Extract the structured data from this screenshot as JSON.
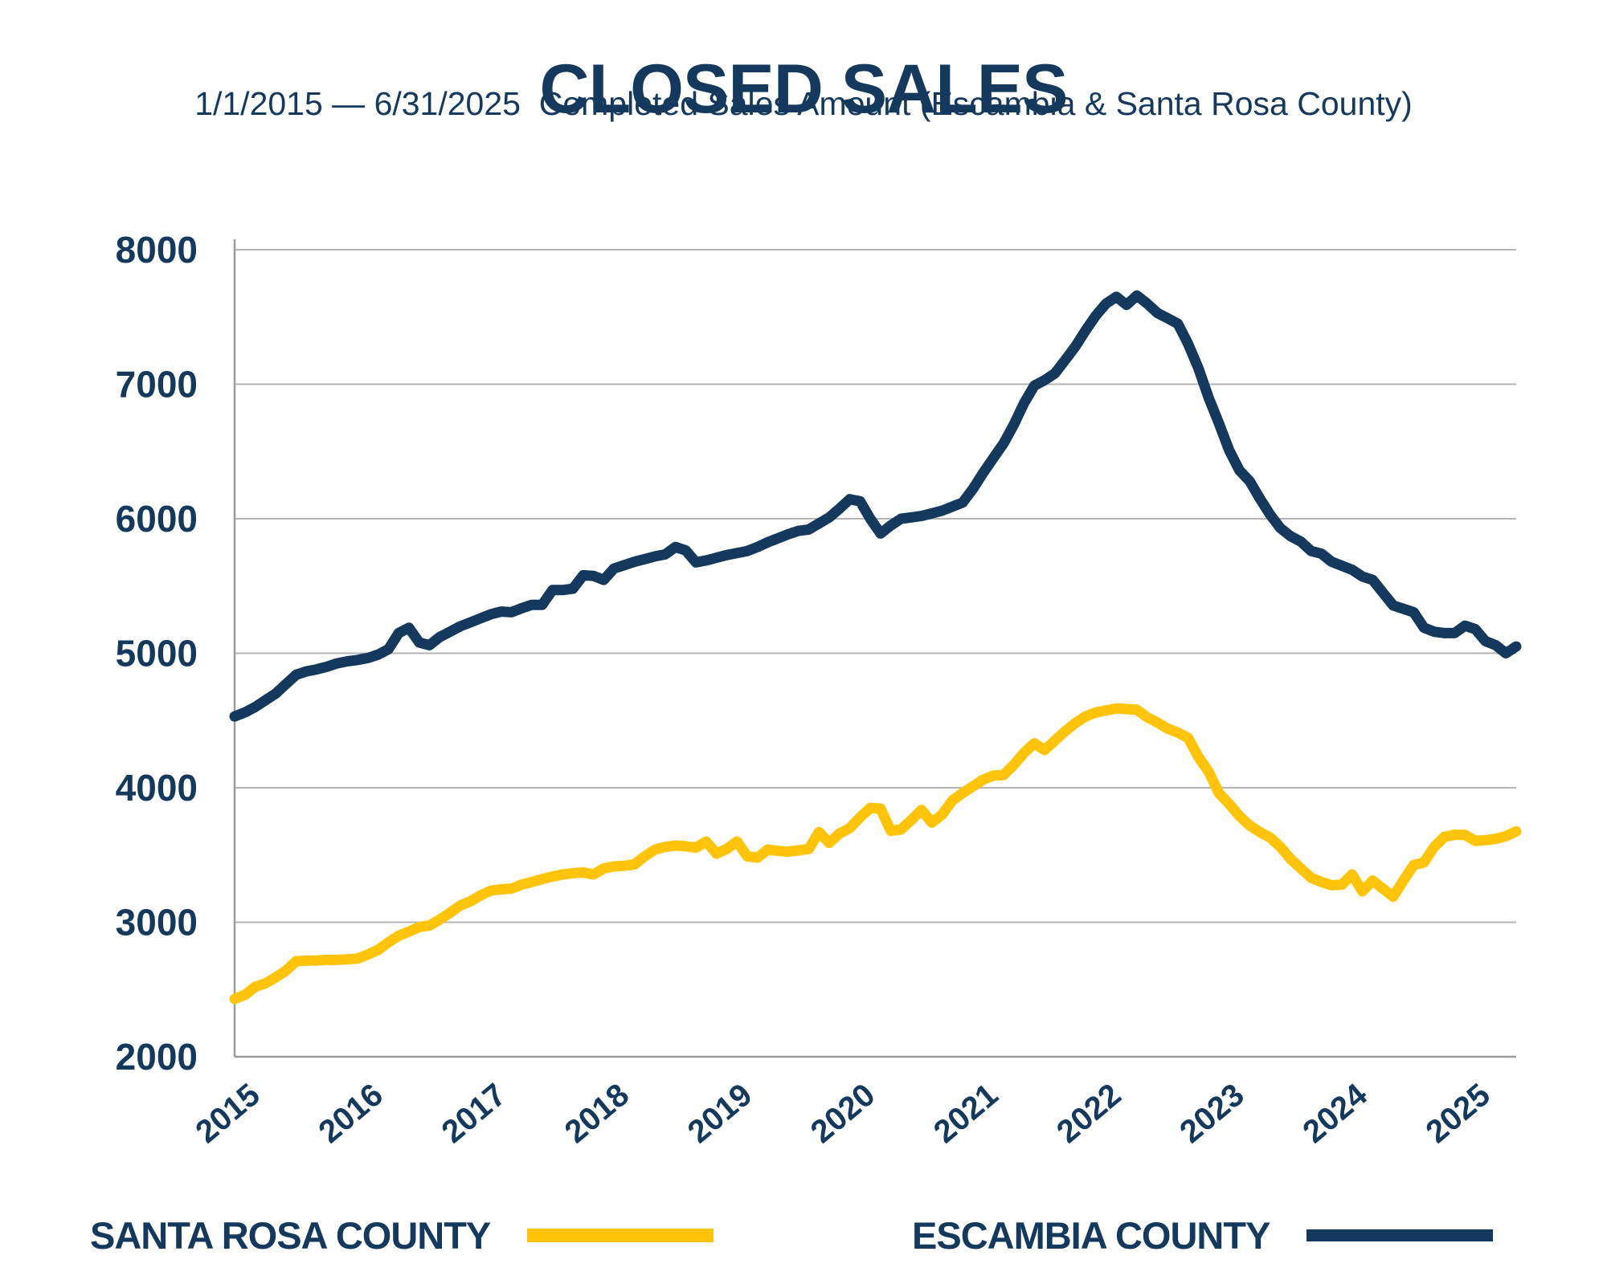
{
  "title": "CLOSED SALES",
  "subtitle": "1/1/2015 — 6/31/2025  Completed Sales Amount (Escambia & Santa Rosa County)",
  "colors": {
    "navy": "#14395C",
    "gold": "#FFC40A",
    "gridline": "#B4B4B4",
    "axis": "#9B9B9B",
    "background": "#FFFFFF"
  },
  "chart_data": {
    "type": "line",
    "title": "CLOSED SALES",
    "date_range": "1/1/2015 — 6/31/2025",
    "x_unit": "month",
    "x_start": "2015-01",
    "x_end": "2025-06",
    "x_tick_labels": [
      "2015",
      "2016",
      "2017",
      "2018",
      "2019",
      "2020",
      "2021",
      "2022",
      "2023",
      "2024",
      "2025"
    ],
    "y_ticks": [
      2000,
      3000,
      4000,
      5000,
      6000,
      7000,
      8000
    ],
    "ylim": [
      2000,
      8000
    ],
    "grid": true,
    "legend_position": "bottom",
    "series": [
      {
        "name": "SANTA ROSA COUNTY",
        "color": "#FFC40A",
        "values": [
          2430,
          2460,
          2520,
          2545,
          2590,
          2640,
          2710,
          2715,
          2715,
          2720,
          2720,
          2725,
          2730,
          2760,
          2795,
          2850,
          2900,
          2930,
          2965,
          2975,
          3020,
          3070,
          3125,
          3155,
          3200,
          3235,
          3245,
          3250,
          3280,
          3300,
          3320,
          3340,
          3355,
          3365,
          3370,
          3355,
          3400,
          3415,
          3420,
          3430,
          3490,
          3540,
          3560,
          3570,
          3565,
          3555,
          3600,
          3510,
          3545,
          3600,
          3490,
          3480,
          3540,
          3530,
          3525,
          3535,
          3545,
          3670,
          3590,
          3660,
          3700,
          3780,
          3850,
          3845,
          3680,
          3690,
          3760,
          3835,
          3740,
          3800,
          3905,
          3960,
          4010,
          4060,
          4090,
          4095,
          4170,
          4260,
          4330,
          4280,
          4350,
          4420,
          4480,
          4530,
          4560,
          4575,
          4590,
          4585,
          4580,
          4525,
          4485,
          4440,
          4410,
          4370,
          4230,
          4120,
          3960,
          3880,
          3790,
          3720,
          3670,
          3630,
          3560,
          3470,
          3400,
          3330,
          3300,
          3275,
          3280,
          3355,
          3230,
          3310,
          3250,
          3190,
          3310,
          3425,
          3445,
          3560,
          3635,
          3650,
          3650,
          3605,
          3610,
          3620,
          3640,
          3675
        ]
      },
      {
        "name": "ESCAMBIA COUNTY",
        "color": "#14395C",
        "values": [
          4530,
          4560,
          4600,
          4650,
          4700,
          4770,
          4840,
          4865,
          4880,
          4900,
          4925,
          4940,
          4950,
          4965,
          4990,
          5030,
          5150,
          5190,
          5080,
          5060,
          5120,
          5160,
          5200,
          5230,
          5260,
          5290,
          5310,
          5305,
          5335,
          5360,
          5360,
          5470,
          5470,
          5480,
          5580,
          5575,
          5545,
          5630,
          5655,
          5680,
          5700,
          5720,
          5735,
          5790,
          5765,
          5675,
          5690,
          5710,
          5730,
          5745,
          5760,
          5790,
          5825,
          5855,
          5885,
          5910,
          5920,
          5965,
          6010,
          6075,
          6145,
          6130,
          6000,
          5890,
          5950,
          6000,
          6010,
          6020,
          6040,
          6060,
          6090,
          6120,
          6220,
          6340,
          6450,
          6560,
          6700,
          6860,
          6990,
          7030,
          7080,
          7180,
          7280,
          7400,
          7510,
          7600,
          7650,
          7590,
          7660,
          7600,
          7530,
          7490,
          7450,
          7300,
          7120,
          6900,
          6710,
          6510,
          6360,
          6280,
          6150,
          6030,
          5930,
          5870,
          5830,
          5760,
          5740,
          5680,
          5650,
          5620,
          5570,
          5545,
          5450,
          5355,
          5330,
          5305,
          5190,
          5160,
          5150,
          5150,
          5205,
          5180,
          5090,
          5060,
          5000,
          5050
        ]
      }
    ]
  },
  "legend": {
    "items": [
      {
        "label": "SANTA ROSA COUNTY",
        "color": "#FFC40A"
      },
      {
        "label": "ESCAMBIA COUNTY",
        "color": "#14395C"
      }
    ]
  }
}
